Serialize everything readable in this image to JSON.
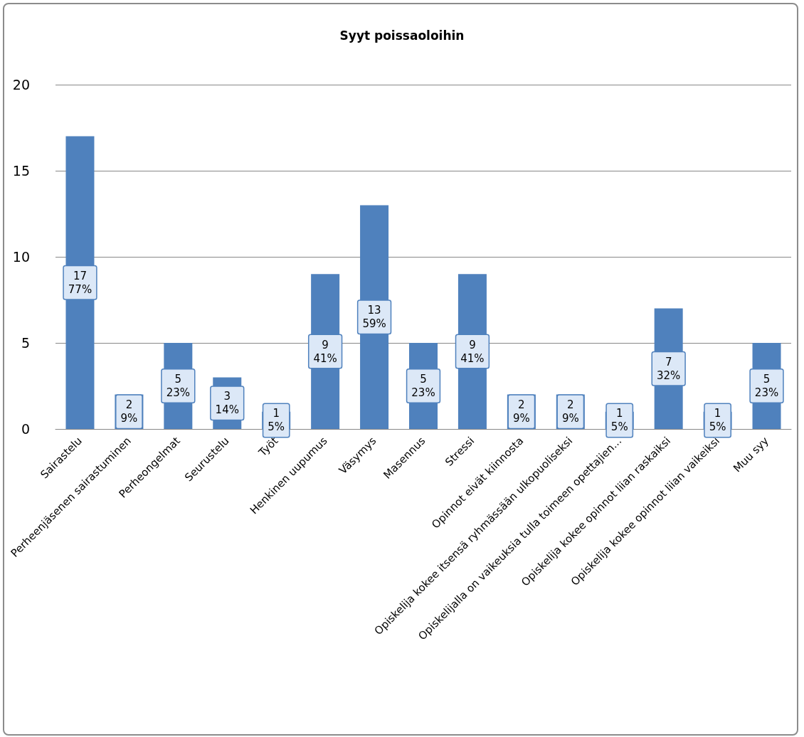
{
  "chart_data": {
    "type": "bar",
    "title": "Syyt poissaoloihin",
    "categories": [
      "Sairastelu",
      "Perheenjäsenen sairastuminen",
      "Perheongelmat",
      "Seurustelu",
      "Työt",
      "Henkinen uupumus",
      "Väsymys",
      "Masennus",
      "Stressi",
      "Opinnot eivät kiinnosta",
      "Opiskelija kokee itsensä ryhmässään ulkopuoliseksi",
      "Opiskelijalla on vaikeuksia tulla toimeen opettajien...",
      "Opiskelija kokee opinnot liian raskaiksi",
      "Opiskelija kokee opinnot liian vaikeiksi",
      "Muu syy"
    ],
    "values": [
      17,
      2,
      5,
      3,
      1,
      9,
      13,
      5,
      9,
      2,
      2,
      1,
      7,
      1,
      5
    ],
    "value_labels": [
      "17\n77%",
      "2\n9%",
      "5\n23%",
      "3\n14%",
      "1\n5%",
      "9\n41%",
      "13\n59%",
      "5\n23%",
      "9\n41%",
      "2\n9%",
      "2\n9%",
      "1\n5%",
      "7\n32%",
      "1\n5%",
      "5\n23%"
    ],
    "color": "#4f81bd",
    "ylim": [
      0,
      20
    ],
    "yticks": [
      0,
      5,
      10,
      15,
      20
    ],
    "grid": "y"
  }
}
